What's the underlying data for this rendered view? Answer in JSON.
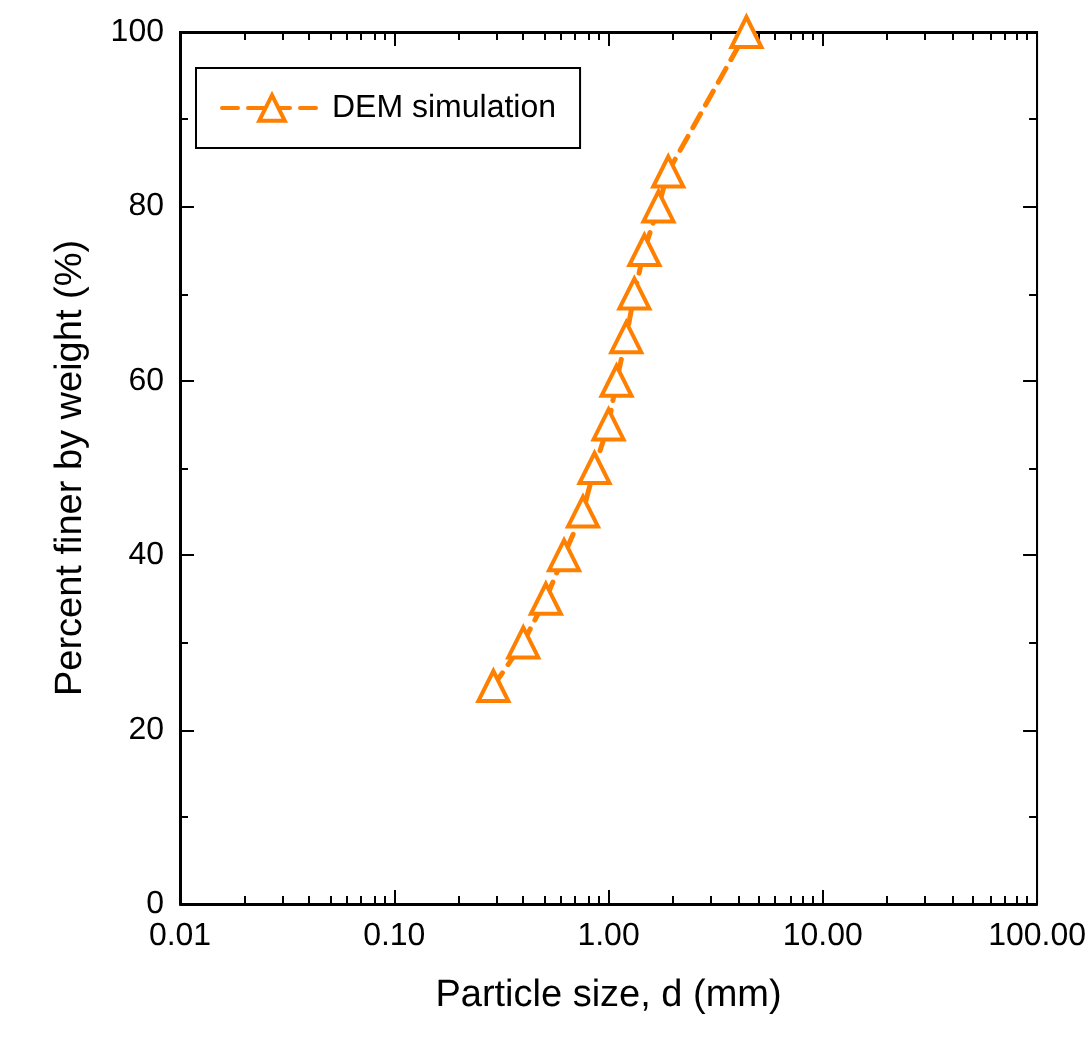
{
  "chart_data": {
    "type": "line",
    "xlabel": "Particle size, d (mm)",
    "ylabel": "Percent finer by weight (%)",
    "log": "x",
    "xlim": [
      0.01,
      100
    ],
    "xticks": [
      {
        "value": 0.01,
        "label": "0.01"
      },
      {
        "value": 0.1,
        "label": "0.10"
      },
      {
        "value": 1,
        "label": "1.00"
      },
      {
        "value": 10,
        "label": "10.00"
      },
      {
        "value": 100,
        "label": "100.00"
      }
    ],
    "ylim": [
      0,
      100
    ],
    "yticks": [
      0,
      20,
      40,
      60,
      80,
      100
    ],
    "grid": false,
    "legend": "top left",
    "marker": "triangle",
    "line_style": "dashed",
    "series": [
      {
        "name": "DEM simulation",
        "color": "#ff8000",
        "x": [
          0.29,
          0.4,
          0.51,
          0.62,
          0.76,
          0.86,
          1.0,
          1.09,
          1.21,
          1.32,
          1.47,
          1.71,
          1.9,
          4.4
        ],
        "values": [
          25,
          30,
          35,
          40,
          45,
          50,
          55,
          60,
          65,
          70,
          75,
          80,
          84,
          100
        ]
      }
    ]
  }
}
